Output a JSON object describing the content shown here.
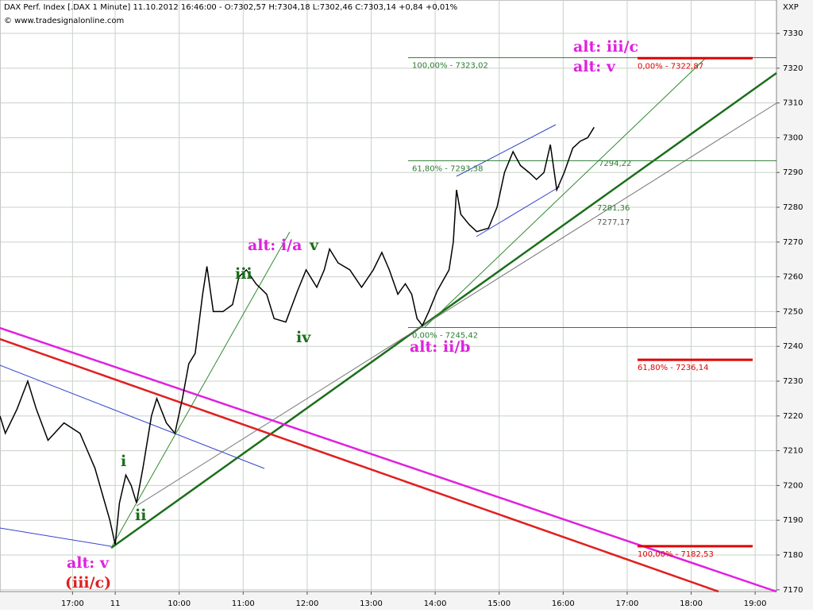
{
  "chart_data": {
    "type": "line",
    "title": "DAX Perf. Index [.DAX 1 Minute] 11.10.2012 16:46:00 - O:7302,57 H:7304,18 L:7302,46 C:7303,14 +0,84 +0,01%",
    "subtitle": "© www.tradesignalonline.com",
    "corner_label": "XXP",
    "series": [
      {
        "name": "DAX",
        "color": "#000000",
        "x": [
          0,
          5,
          16,
          26,
          34,
          45,
          60,
          75,
          82,
          89,
          103,
          108,
          112,
          118,
          123,
          128,
          134,
          142,
          147,
          156,
          164,
          171,
          177,
          183,
          190,
          194,
          200,
          209,
          218,
          224,
          231,
          240,
          250,
          257,
          268,
          279,
          287,
          297,
          304,
          309,
          317,
          328,
          339,
          350,
          358,
          365,
          373,
          380,
          386,
          391,
          396,
          402,
          410,
          421,
          425,
          428,
          432,
          440,
          447,
          458,
          466,
          473,
          481,
          488,
          496,
          503,
          510,
          516,
          522,
          529,
          537,
          544,
          551,
          557
        ],
        "values": [
          7220,
          7215,
          7222,
          7230,
          7222,
          7213,
          7218,
          7215,
          7210,
          7205,
          7190,
          7183,
          7195,
          7203,
          7200,
          7195,
          7205,
          7220,
          7225,
          7218,
          7215,
          7225,
          7235,
          7238,
          7255,
          7263,
          7250,
          7250,
          7252,
          7260,
          7262,
          7258,
          7255,
          7248,
          7247,
          7256,
          7262,
          7257,
          7262,
          7268,
          7264,
          7262,
          7257,
          7262,
          7267,
          7262,
          7255,
          7258,
          7255,
          7248,
          7246,
          7250,
          7256,
          7262,
          7270,
          7285,
          7278,
          7275,
          7273,
          7274,
          7280,
          7290,
          7296,
          7292,
          7290,
          7288,
          7290,
          7298,
          7285,
          7290,
          7297,
          7299,
          7300,
          7303
        ]
      }
    ],
    "xlim": [
      0,
      728
    ],
    "ylim": [
      7169.5,
      7339.6
    ],
    "xticks": [
      {
        "value": 68,
        "label": "17:00"
      },
      {
        "value": 108,
        "label": "11"
      },
      {
        "value": 168,
        "label": "10:00"
      },
      {
        "value": 228,
        "label": "11:00"
      },
      {
        "value": 288,
        "label": "12:00"
      },
      {
        "value": 348,
        "label": "13:00"
      },
      {
        "value": 408,
        "label": "14:00"
      },
      {
        "value": 468,
        "label": "15:00"
      },
      {
        "value": 528,
        "label": "16:00"
      },
      {
        "value": 588,
        "label": "17:00"
      },
      {
        "value": 648,
        "label": "18:00"
      },
      {
        "value": 708,
        "label": "19:00"
      }
    ],
    "yticks": [
      7170,
      7180,
      7190,
      7200,
      7210,
      7220,
      7230,
      7240,
      7250,
      7260,
      7270,
      7280,
      7290,
      7300,
      7310,
      7320,
      7330
    ],
    "grid": true,
    "levels": [
      {
        "value": 7323.02,
        "label": "100,00% - 7323,02",
        "color": "#2e7d32"
      },
      {
        "value": 7293.38,
        "label": "61,80% - 7293,38",
        "color": "#2e7d32"
      },
      {
        "value": 7245.42,
        "label": "0,00% - 7245,42",
        "color": "#2e7d32"
      },
      {
        "value": 7322.87,
        "label": "0,00% - 7322,87",
        "color": "#e00000"
      },
      {
        "value": 7236.14,
        "label": "61,80% - 7236,14",
        "color": "#e00000"
      },
      {
        "value": 7182.53,
        "label": "100,00% - 7182,53",
        "color": "#e00000"
      }
    ],
    "line_labels": [
      "7294,22",
      "7281,36",
      "7277,17"
    ],
    "waves": [
      "alt: iii/c",
      "alt: v",
      "alt: i/a",
      "v",
      "iii",
      "iv",
      "alt: ii/b",
      "i",
      "ii",
      "alt: v",
      "(iii/c)"
    ]
  }
}
